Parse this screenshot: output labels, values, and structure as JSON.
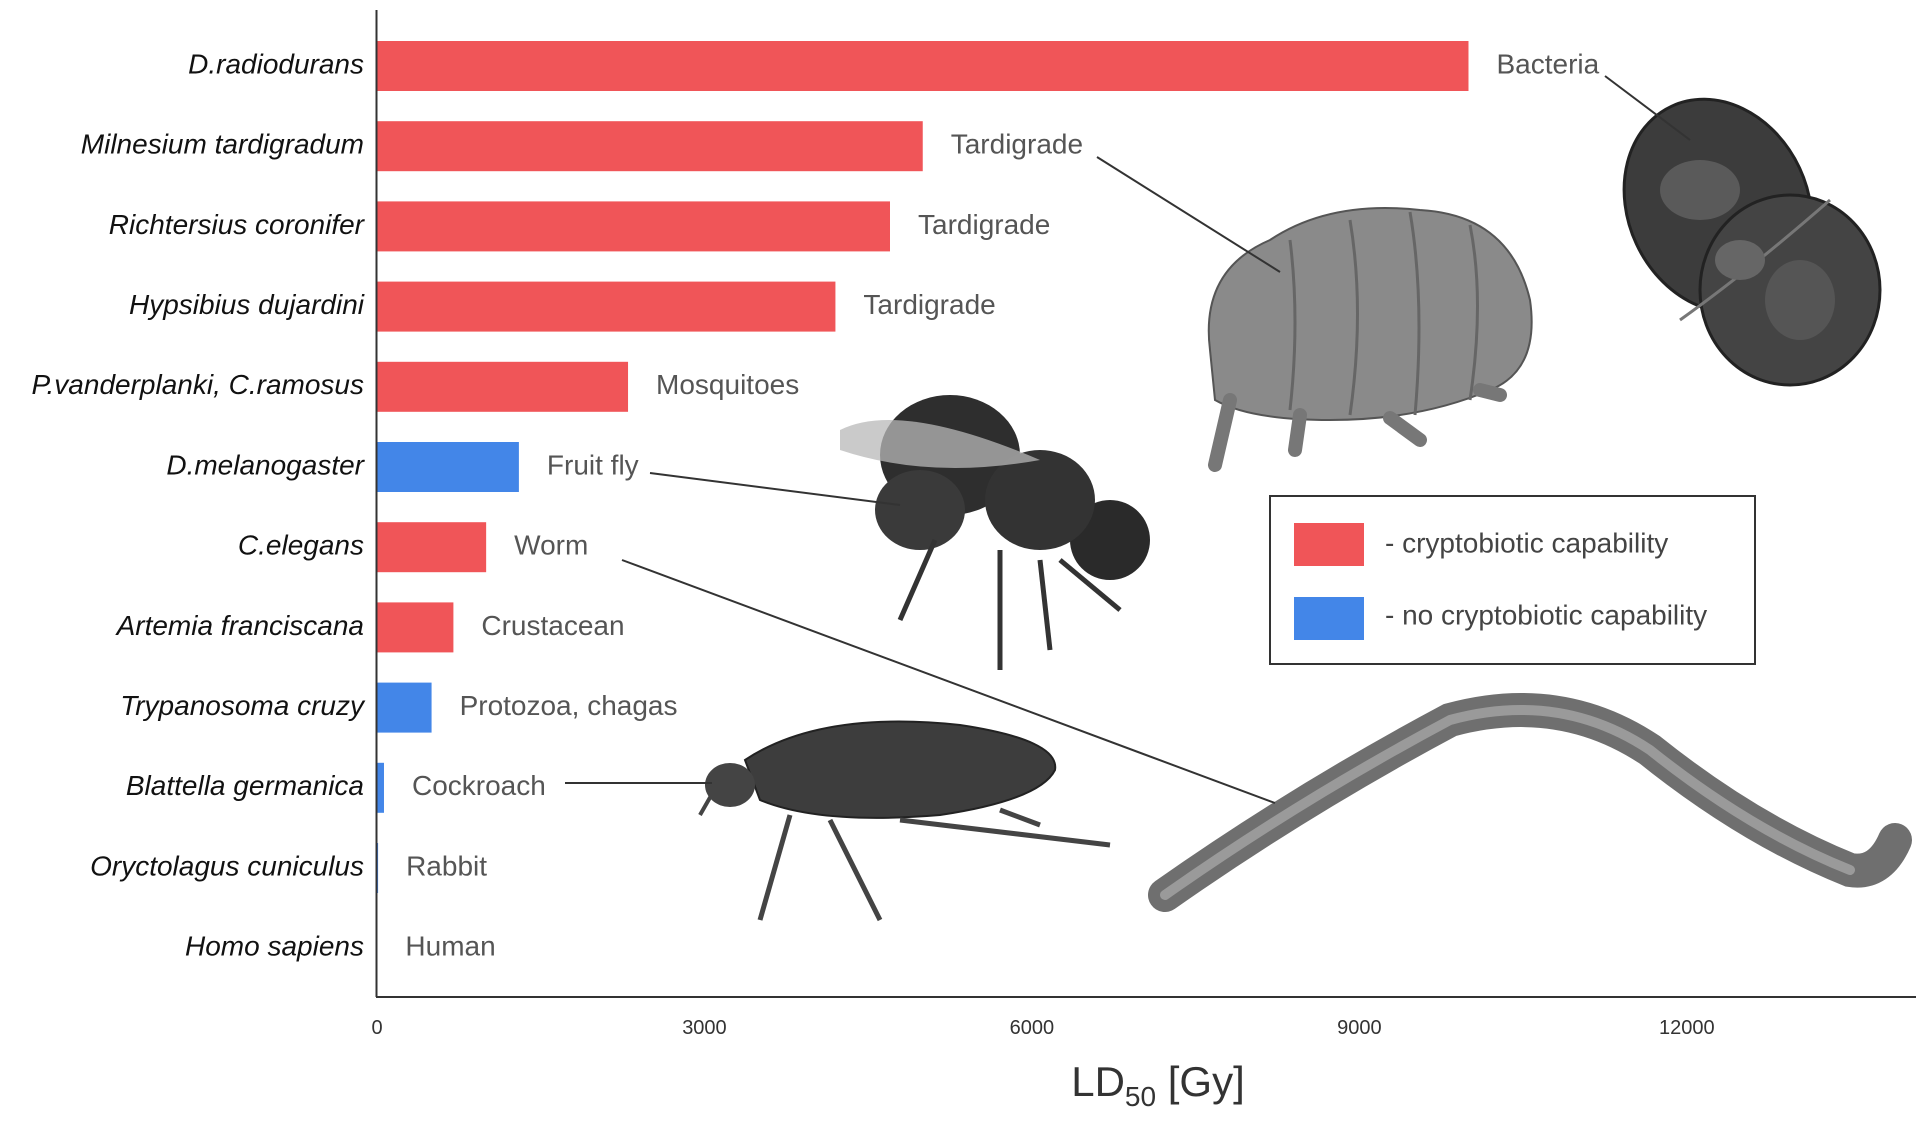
{
  "colors": {
    "cryptobiotic": "#f05558",
    "non_cryptobiotic": "#4386e8",
    "axis": "#333333",
    "label": "#555555"
  },
  "chart_data": {
    "type": "bar",
    "orientation": "horizontal",
    "xlabel_main": "LD",
    "xlabel_sub": "50",
    "xlabel_unit": " [Gy]",
    "xlim": [
      0,
      14100
    ],
    "xticks": [
      "0",
      "3000",
      "6000",
      "9000",
      "12000"
    ],
    "grid": false,
    "legend_position": "right",
    "legend": [
      {
        "label": "- cryptobiotic capability",
        "group": "cryptobiotic"
      },
      {
        "label": "- no cryptobiotic capability",
        "group": "non_cryptobiotic"
      }
    ],
    "categories": [
      "D.radiodurans",
      "Milnesium tardigradum",
      "Richtersius coronifer",
      "Hypsibius dujardini",
      "P.vanderplanki, C.ramosus",
      "D.melanogaster",
      "C.elegans",
      "Artemia franciscana",
      "Trypanosoma cruzy",
      "Blattella germanica",
      "Oryctolagus cuniculus",
      "Homo sapiens"
    ],
    "values": [
      10000,
      5000,
      4700,
      4200,
      2300,
      1300,
      1000,
      700,
      500,
      64,
      10,
      4
    ],
    "groups": [
      "cryptobiotic",
      "cryptobiotic",
      "cryptobiotic",
      "cryptobiotic",
      "cryptobiotic",
      "non_cryptobiotic",
      "cryptobiotic",
      "cryptobiotic",
      "non_cryptobiotic",
      "non_cryptobiotic",
      "non_cryptobiotic",
      "non_cryptobiotic"
    ],
    "bar_labels": [
      "Bacteria",
      "Tardigrade",
      "Tardigrade",
      "Tardigrade",
      "Mosquitoes",
      "Fruit fly",
      "Worm",
      "Crustacean",
      "Protozoa, chagas",
      "Cockroach",
      "Rabbit",
      "Human"
    ]
  },
  "illustrations": [
    "bacteria-photo",
    "tardigrade-photo",
    "fruit-fly-photo",
    "worm-photo",
    "cockroach-photo"
  ]
}
